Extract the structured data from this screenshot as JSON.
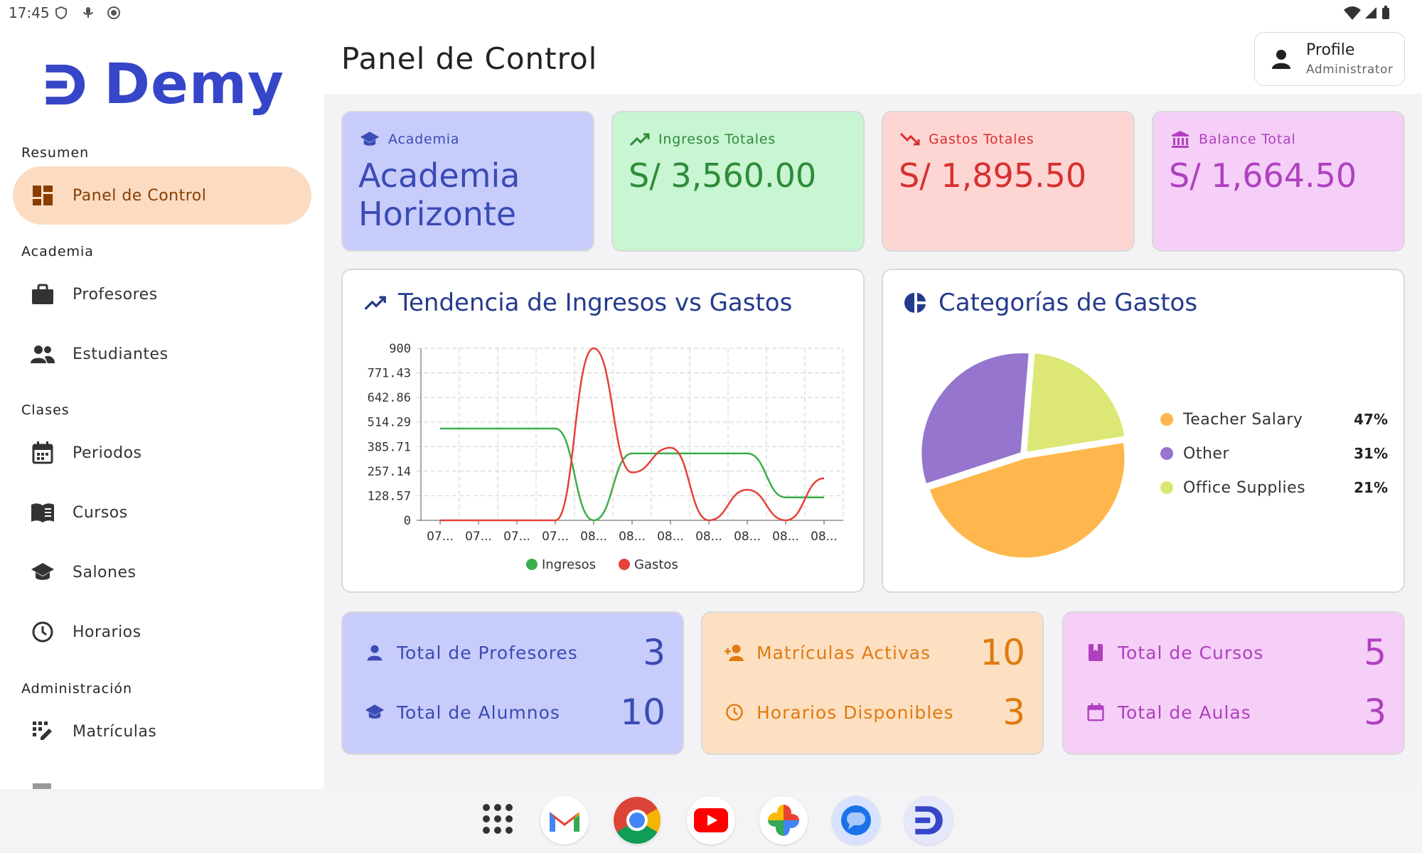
{
  "status_bar": {
    "time": "17:45"
  },
  "sidebar": {
    "logo": "Demy",
    "sections": [
      {
        "label": "Resumen"
      },
      {
        "label": "Academia"
      },
      {
        "label": "Clases"
      },
      {
        "label": "Administración"
      }
    ],
    "items": [
      {
        "label": "Panel de Control",
        "icon": "dashboard-icon",
        "active": true
      },
      {
        "label": "Profesores",
        "icon": "briefcase-icon"
      },
      {
        "label": "Estudiantes",
        "icon": "people-icon"
      },
      {
        "label": "Periodos",
        "icon": "calendar-icon"
      },
      {
        "label": "Cursos",
        "icon": "book-icon"
      },
      {
        "label": "Salones",
        "icon": "school-icon"
      },
      {
        "label": "Horarios",
        "icon": "clock-icon"
      },
      {
        "label": "Matrículas",
        "icon": "grid-edit-icon"
      }
    ]
  },
  "header": {
    "title": "Panel de Control",
    "profile": {
      "name": "Profile",
      "role": "Administrator"
    }
  },
  "summary_cards": [
    {
      "label": "Academia",
      "value": "Academia Horizonte",
      "icon": "school-icon",
      "color": "#3a4bb5",
      "bg": "#c8ccfb"
    },
    {
      "label": "Ingresos Totales",
      "value": "S/ 3,560.00",
      "icon": "trending-up-icon",
      "color": "#2e8b3a",
      "bg": "#c8f5d2"
    },
    {
      "label": "Gastos Totales",
      "value": "S/ 1,895.50",
      "icon": "trending-down-icon",
      "color": "#d83030",
      "bg": "#fdd6d3"
    },
    {
      "label": "Balance Total",
      "value": "S/ 1,664.50",
      "icon": "bank-icon",
      "color": "#b040c0",
      "bg": "#f5cff7"
    }
  ],
  "line_panel": {
    "title": "Tendencia de Ingresos vs Gastos"
  },
  "pie_panel": {
    "title": "Categorías de Gastos"
  },
  "chart_data": [
    {
      "type": "line",
      "title": "Tendencia de Ingresos vs Gastos",
      "x": [
        "07...",
        "07...",
        "07...",
        "07...",
        "08...",
        "08...",
        "08...",
        "08...",
        "08...",
        "08...",
        "08..."
      ],
      "y_ticks": [
        "0",
        "128.57",
        "257.14",
        "385.71",
        "514.29",
        "642.86",
        "771.43",
        "900"
      ],
      "ylim": [
        0,
        900
      ],
      "grid": true,
      "legend": "bottom",
      "series": [
        {
          "name": "Ingresos",
          "color": "#3cae4a",
          "values": [
            480,
            480,
            480,
            480,
            0,
            350,
            350,
            350,
            350,
            120,
            120
          ]
        },
        {
          "name": "Gastos",
          "color": "#e5413a",
          "values": [
            0,
            0,
            0,
            0,
            900,
            250,
            380,
            0,
            160,
            0,
            220
          ]
        }
      ]
    },
    {
      "type": "pie",
      "title": "Categorías de Gastos",
      "legend": "right",
      "slices": [
        {
          "name": "Teacher Salary",
          "percent": "47%",
          "value": 47,
          "color": "#ffb74d"
        },
        {
          "name": "Other",
          "percent": "31%",
          "value": 31,
          "color": "#9575cd"
        },
        {
          "name": "Office Supplies",
          "percent": "21%",
          "value": 21,
          "color": "#dce775"
        }
      ]
    }
  ],
  "stat_cards": [
    {
      "color": "#3a4bb5",
      "bg": "#c8ccfb",
      "rows": [
        {
          "label": "Total de Profesores",
          "value": "3",
          "icon": "person-icon"
        },
        {
          "label": "Total de Alumnos",
          "value": "10",
          "icon": "school-icon"
        }
      ]
    },
    {
      "color": "#e07a10",
      "bg": "#fde0c2",
      "rows": [
        {
          "label": "Matrículas Activas",
          "value": "10",
          "icon": "person-add-icon"
        },
        {
          "label": "Horarios Disponibles",
          "value": "3",
          "icon": "clock-icon"
        }
      ]
    },
    {
      "color": "#b040c0",
      "bg": "#f5cff7",
      "rows": [
        {
          "label": "Total de Cursos",
          "value": "5",
          "icon": "bookmark-book-icon"
        },
        {
          "label": "Total de Aulas",
          "value": "3",
          "icon": "calendar-icon"
        }
      ]
    }
  ],
  "dock": [
    "apps-grid-icon",
    "gmail-icon",
    "chrome-icon",
    "youtube-icon",
    "photos-icon",
    "messages-icon",
    "demy-icon"
  ]
}
